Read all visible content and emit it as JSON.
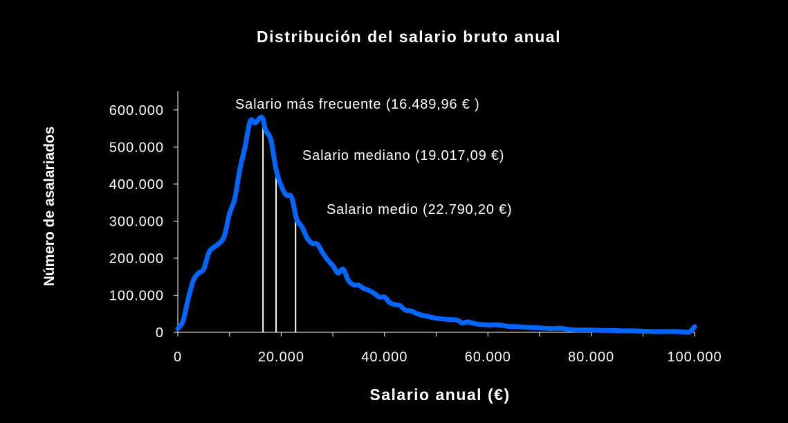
{
  "chart_data": {
    "type": "line",
    "title": "Distribución del salario bruto anual",
    "xlabel": "Salario anual (€)",
    "ylabel": "Número de asalariados",
    "xlim": [
      0,
      100000
    ],
    "ylim": [
      0,
      650000
    ],
    "x_ticks": [
      0,
      20000,
      40000,
      60000,
      80000,
      100000
    ],
    "x_tick_labels": [
      "0",
      "20.000",
      "40.000",
      "60.000",
      "80.000",
      "100.000"
    ],
    "y_ticks": [
      0,
      100000,
      200000,
      300000,
      400000,
      500000,
      600000
    ],
    "y_tick_labels": [
      "0",
      "100.000",
      "200.000",
      "300.000",
      "400.000",
      "500.000",
      "600.000"
    ],
    "grid": false,
    "colors": {
      "background": "#000000",
      "series": "#0066ff",
      "text": "#ffffff",
      "markers": "#ffffff"
    },
    "series": [
      {
        "x": [
          0,
          1000,
          2000,
          3000,
          4000,
          5000,
          6000,
          7000,
          8000,
          9000,
          10000,
          11000,
          12000,
          13000,
          14000,
          15000,
          16000,
          16490,
          17000,
          18000,
          19000,
          20000,
          21000,
          22000,
          23000,
          24000,
          25000,
          26000,
          27000,
          28000,
          29000,
          30000,
          31000,
          32000,
          33000,
          34000,
          35000,
          36000,
          37000,
          38000,
          39000,
          40000,
          41000,
          42000,
          43000,
          44000,
          45000,
          46000,
          47000,
          48000,
          50000,
          52000,
          54000,
          55000,
          56000,
          58000,
          60000,
          62000,
          64000,
          66000,
          68000,
          70000,
          72000,
          74000,
          76000,
          78000,
          80000,
          82000,
          84000,
          86000,
          88000,
          90000,
          92000,
          94000,
          96000,
          98000,
          99000,
          100000
        ],
        "y": [
          10000,
          30000,
          90000,
          140000,
          160000,
          170000,
          215000,
          230000,
          240000,
          260000,
          320000,
          360000,
          440000,
          500000,
          570000,
          565000,
          580000,
          575000,
          545000,
          520000,
          440000,
          395000,
          370000,
          365000,
          305000,
          285000,
          255000,
          240000,
          238000,
          215000,
          195000,
          180000,
          160000,
          170000,
          140000,
          128000,
          127000,
          118000,
          113000,
          105000,
          95000,
          95000,
          80000,
          75000,
          72000,
          60000,
          58000,
          52000,
          47000,
          44000,
          38000,
          35000,
          33000,
          25000,
          28000,
          22000,
          20000,
          20000,
          16000,
          15000,
          13000,
          12000,
          10000,
          11000,
          7000,
          6000,
          6000,
          5000,
          5000,
          4000,
          4000,
          3000,
          2000,
          2000,
          2000,
          1000,
          1000,
          15000
        ]
      }
    ],
    "markers": [
      {
        "label": "Salario más frecuente (16.489,96 € )",
        "x": 16489.96
      },
      {
        "label": "Salario mediano (19.017,09 €)",
        "x": 19017.09
      },
      {
        "label": "Salario medio (22.790,20 €)",
        "x": 22790.2
      }
    ]
  }
}
